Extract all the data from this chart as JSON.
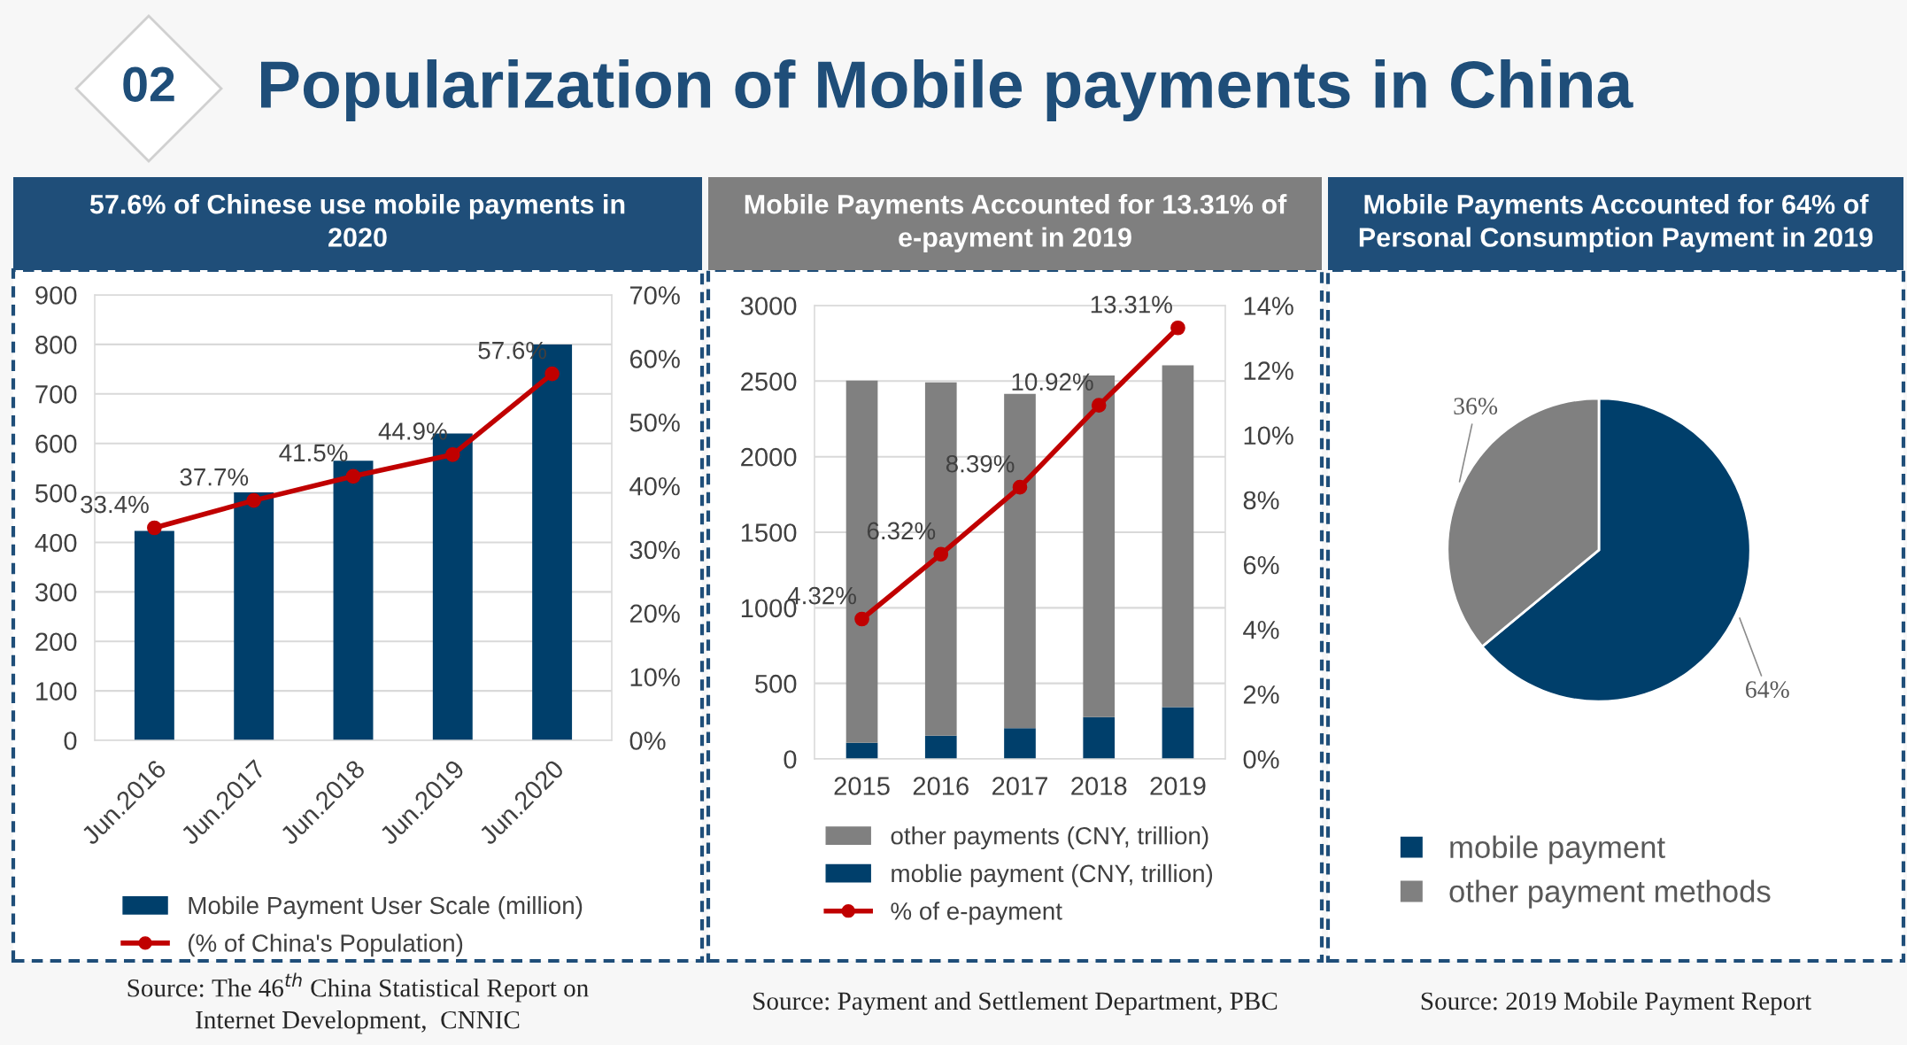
{
  "chart_data": [
    {
      "type": "other",
      "title": "Popularization of Mobile payments in China",
      "annotations": [
        "02"
      ]
    },
    {
      "type": "bar",
      "title": "57.6% of Chinese use mobile payments in\n2020",
      "categories": [
        "Jun.2016",
        "Jun.2017",
        "Jun.2018",
        "Jun.2019",
        "Jun.2020"
      ],
      "series": [
        {
          "name": "Mobile Payment User Scale (million)",
          "color": "#003f6b",
          "values": [
            423,
            501,
            565,
            620,
            800
          ]
        },
        {
          "name": "(% of China's Population)",
          "type": "line",
          "axis": "y2",
          "color": "#c00000",
          "values": [
            33.4,
            37.7,
            41.5,
            44.9,
            57.6
          ],
          "value_labels": [
            "33.4%",
            "37.7%",
            "41.5%",
            "44.9%",
            "57.6%"
          ]
        }
      ],
      "ylim": [
        0,
        900
      ],
      "yticks": [
        0,
        100,
        200,
        300,
        400,
        500,
        600,
        700,
        800,
        900
      ],
      "y2lim": [
        0,
        70
      ],
      "y2ticks": [
        {
          "value": 0,
          "label": "0%"
        },
        {
          "value": 10,
          "label": "10%"
        },
        {
          "value": 20,
          "label": "20%"
        },
        {
          "value": 30,
          "label": "30%"
        },
        {
          "value": 40,
          "label": "40%"
        },
        {
          "value": 50,
          "label": "50%"
        },
        {
          "value": 60,
          "label": "60%"
        },
        {
          "value": 70,
          "label": "70%"
        }
      ],
      "grid": "y",
      "legend": "bottom",
      "marker": "circle",
      "annotations": [
        "Source: The 46$^{th}$ China Statistical Report on\nInternet Development,  CNNIC"
      ]
    },
    {
      "type": "bar",
      "title": "Mobile Payments Accounted for 13.31% of\ne-payment in 2019",
      "categories": [
        "2015",
        "2016",
        "2017",
        "2018",
        "2019"
      ],
      "stacked": true,
      "series": [
        {
          "name": "moblie payment (CNY, trillion)",
          "color": "#003f6b",
          "values": [
            107,
            154,
            204,
            277,
            343
          ]
        },
        {
          "name": "other payments (CNY, trillion)",
          "color": "#808080",
          "values": [
            2396,
            2338,
            2212,
            2260,
            2262
          ]
        },
        {
          "name": "% of e-payment",
          "type": "line",
          "axis": "y2",
          "color": "#c00000",
          "values": [
            4.32,
            6.32,
            8.39,
            10.92,
            13.31
          ],
          "value_labels": [
            "4.32%",
            "6.32%",
            "8.39%",
            "10.92%",
            "13.31%"
          ]
        }
      ],
      "ylim": [
        0,
        3000
      ],
      "yticks": [
        0,
        500,
        1000,
        1500,
        2000,
        2500,
        3000
      ],
      "y2lim": [
        0,
        14
      ],
      "y2ticks": [
        {
          "value": 0,
          "label": "0%"
        },
        {
          "value": 2,
          "label": "2%"
        },
        {
          "value": 4,
          "label": "4%"
        },
        {
          "value": 6,
          "label": "6%"
        },
        {
          "value": 8,
          "label": "8%"
        },
        {
          "value": 10,
          "label": "10%"
        },
        {
          "value": 12,
          "label": "12%"
        },
        {
          "value": 14,
          "label": "14%"
        }
      ],
      "grid": "y",
      "legend": "bottom",
      "marker": "circle",
      "annotations": [
        "Source: Payment and Settlement Department, PBC"
      ]
    },
    {
      "type": "pie",
      "title": "Mobile Payments Accounted for 64% of\nPersonal Consumption Payment in 2019",
      "categories": [
        "mobile payment",
        "other payment methods"
      ],
      "values": [
        64,
        36
      ],
      "colors": [
        "#003f6b",
        "#808080"
      ],
      "value_labels": [
        "64%",
        "36%"
      ],
      "legend": "bottom",
      "annotations": [
        "Source: 2019 Mobile Payment Report"
      ]
    }
  ]
}
